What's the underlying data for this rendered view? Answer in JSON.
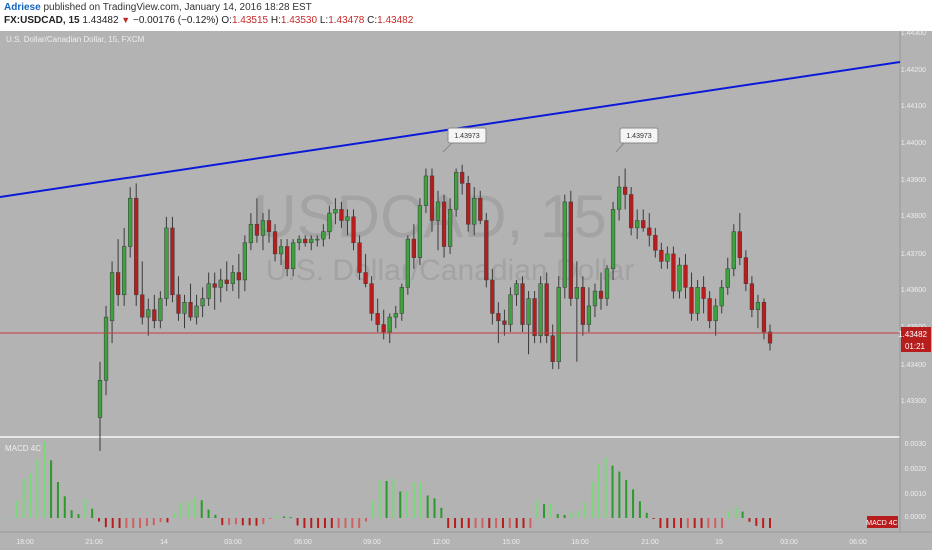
{
  "header": {
    "author": "Adriese",
    "published": "published on TradingView.com, January 14, 2016 18:28 EST",
    "symbol": "FX:USDCAD, 15",
    "last": "1.43482",
    "change_arrow": "▼",
    "change": "−0.00176 (−0.12%)",
    "ohlc": {
      "o_label": "O:",
      "o": "1.43515",
      "h_label": "H:",
      "h": "1.43530",
      "l_label": "L:",
      "l": "1.43478",
      "c_label": "C:",
      "c": "1.43482"
    }
  },
  "chart_info": "U.S. Dollar/Canadian Dollar, 15, FXCM",
  "watermark": {
    "main": "USDCAD, 15",
    "sub": "U.S. Dollar/Canadian Dollar"
  },
  "colors": {
    "bg": "#b3b3b3",
    "up": "#3fa13f",
    "down": "#b81d1d",
    "trendline": "#0a1ad8",
    "price_line": "#c43c3c",
    "macd_up": "#79d979",
    "macd_up_dark": "#2a9a2a",
    "macd_down": "#d06060",
    "macd_down_dark": "#b81d1d"
  },
  "price_axis": {
    "ticks": [
      "1.44300",
      "1.44200",
      "1.44100",
      "1.44000",
      "1.43900",
      "1.43800",
      "1.43700",
      "1.43600",
      "1.43500",
      "1.43400",
      "1.43300"
    ],
    "current": "1.43482",
    "countdown": "01:21"
  },
  "time_axis": [
    "18:00",
    "21:00",
    "14",
    "03:00",
    "06:00",
    "09:00",
    "12:00",
    "15:00",
    "18:00",
    "21:00",
    "15",
    "03:00",
    "06:00"
  ],
  "callouts": [
    "1.43973",
    "1.43973"
  ],
  "macd": {
    "label": "MACD 4C",
    "badge": "MACD 4C",
    "ticks": [
      "0.0030",
      "0.0020",
      "0.0010",
      "0.0000"
    ]
  },
  "chart_data": {
    "type": "candlestick",
    "title": "U.S. Dollar/Canadian Dollar, 15, FXCM",
    "ylim": [
      1.4325,
      1.4434
    ],
    "note_fields": [
      "o",
      "h",
      "l",
      "c"
    ],
    "candles": [
      {
        "o": 1.433,
        "h": 1.4345,
        "l": 1.4321,
        "c": 1.434
      },
      {
        "o": 1.434,
        "h": 1.436,
        "l": 1.4336,
        "c": 1.4357
      },
      {
        "o": 1.4356,
        "h": 1.4372,
        "l": 1.435,
        "c": 1.4369
      },
      {
        "o": 1.4369,
        "h": 1.4378,
        "l": 1.436,
        "c": 1.4363
      },
      {
        "o": 1.4363,
        "h": 1.4381,
        "l": 1.436,
        "c": 1.4376
      },
      {
        "o": 1.4376,
        "h": 1.4392,
        "l": 1.4373,
        "c": 1.4389
      },
      {
        "o": 1.4389,
        "h": 1.4393,
        "l": 1.436,
        "c": 1.4363
      },
      {
        "o": 1.4363,
        "h": 1.4372,
        "l": 1.4355,
        "c": 1.4357
      },
      {
        "o": 1.4357,
        "h": 1.4362,
        "l": 1.4352,
        "c": 1.4359
      },
      {
        "o": 1.4359,
        "h": 1.4363,
        "l": 1.4354,
        "c": 1.4356
      },
      {
        "o": 1.4356,
        "h": 1.4364,
        "l": 1.4354,
        "c": 1.4362
      },
      {
        "o": 1.4362,
        "h": 1.4384,
        "l": 1.436,
        "c": 1.4381
      },
      {
        "o": 1.4381,
        "h": 1.4384,
        "l": 1.4361,
        "c": 1.4363
      },
      {
        "o": 1.4363,
        "h": 1.4368,
        "l": 1.4356,
        "c": 1.4358
      },
      {
        "o": 1.4358,
        "h": 1.4363,
        "l": 1.4354,
        "c": 1.4361
      },
      {
        "o": 1.4361,
        "h": 1.4366,
        "l": 1.4356,
        "c": 1.4357
      },
      {
        "o": 1.4357,
        "h": 1.4363,
        "l": 1.4355,
        "c": 1.436
      },
      {
        "o": 1.436,
        "h": 1.4365,
        "l": 1.4357,
        "c": 1.4362
      },
      {
        "o": 1.4362,
        "h": 1.4369,
        "l": 1.436,
        "c": 1.4366
      },
      {
        "o": 1.4366,
        "h": 1.4369,
        "l": 1.4359,
        "c": 1.4365
      },
      {
        "o": 1.4365,
        "h": 1.437,
        "l": 1.4361,
        "c": 1.4367
      },
      {
        "o": 1.4367,
        "h": 1.4372,
        "l": 1.4364,
        "c": 1.4366
      },
      {
        "o": 1.4366,
        "h": 1.4371,
        "l": 1.4364,
        "c": 1.4369
      },
      {
        "o": 1.4369,
        "h": 1.4374,
        "l": 1.4362,
        "c": 1.4367
      },
      {
        "o": 1.4367,
        "h": 1.4379,
        "l": 1.4364,
        "c": 1.4377
      },
      {
        "o": 1.4377,
        "h": 1.4385,
        "l": 1.4375,
        "c": 1.4382
      },
      {
        "o": 1.4382,
        "h": 1.4389,
        "l": 1.4377,
        "c": 1.4379
      },
      {
        "o": 1.4379,
        "h": 1.4385,
        "l": 1.4375,
        "c": 1.4383
      },
      {
        "o": 1.4383,
        "h": 1.4386,
        "l": 1.4377,
        "c": 1.438
      },
      {
        "o": 1.438,
        "h": 1.4382,
        "l": 1.4372,
        "c": 1.4374
      },
      {
        "o": 1.4374,
        "h": 1.4378,
        "l": 1.4371,
        "c": 1.4376
      },
      {
        "o": 1.4376,
        "h": 1.4378,
        "l": 1.4368,
        "c": 1.437
      },
      {
        "o": 1.437,
        "h": 1.4378,
        "l": 1.4368,
        "c": 1.4377
      },
      {
        "o": 1.4377,
        "h": 1.4379,
        "l": 1.4375,
        "c": 1.4378
      },
      {
        "o": 1.4378,
        "h": 1.4379,
        "l": 1.4376,
        "c": 1.4377
      },
      {
        "o": 1.4377,
        "h": 1.4379,
        "l": 1.4375,
        "c": 1.4378
      },
      {
        "o": 1.4378,
        "h": 1.4379,
        "l": 1.4376,
        "c": 1.4378
      },
      {
        "o": 1.4378,
        "h": 1.4382,
        "l": 1.4376,
        "c": 1.438
      },
      {
        "o": 1.438,
        "h": 1.4387,
        "l": 1.4378,
        "c": 1.4385
      },
      {
        "o": 1.4385,
        "h": 1.4389,
        "l": 1.4382,
        "c": 1.4386
      },
      {
        "o": 1.4386,
        "h": 1.4388,
        "l": 1.4381,
        "c": 1.4383
      },
      {
        "o": 1.4383,
        "h": 1.4386,
        "l": 1.4379,
        "c": 1.4384
      },
      {
        "o": 1.4384,
        "h": 1.4386,
        "l": 1.4375,
        "c": 1.4377
      },
      {
        "o": 1.4377,
        "h": 1.4379,
        "l": 1.4367,
        "c": 1.4369
      },
      {
        "o": 1.4369,
        "h": 1.4374,
        "l": 1.4365,
        "c": 1.4366
      },
      {
        "o": 1.4366,
        "h": 1.4368,
        "l": 1.4356,
        "c": 1.4358
      },
      {
        "o": 1.4358,
        "h": 1.4362,
        "l": 1.4353,
        "c": 1.4355
      },
      {
        "o": 1.4355,
        "h": 1.4359,
        "l": 1.4351,
        "c": 1.4353
      },
      {
        "o": 1.4353,
        "h": 1.4358,
        "l": 1.435,
        "c": 1.4357
      },
      {
        "o": 1.4357,
        "h": 1.436,
        "l": 1.4354,
        "c": 1.4358
      },
      {
        "o": 1.4358,
        "h": 1.4366,
        "l": 1.4356,
        "c": 1.4365
      },
      {
        "o": 1.4365,
        "h": 1.4379,
        "l": 1.4363,
        "c": 1.4378
      },
      {
        "o": 1.4378,
        "h": 1.4382,
        "l": 1.437,
        "c": 1.4373
      },
      {
        "o": 1.4373,
        "h": 1.4389,
        "l": 1.4371,
        "c": 1.4387
      },
      {
        "o": 1.4387,
        "h": 1.4397,
        "l": 1.4385,
        "c": 1.4395
      },
      {
        "o": 1.4395,
        "h": 1.4397,
        "l": 1.438,
        "c": 1.4383
      },
      {
        "o": 1.4383,
        "h": 1.4391,
        "l": 1.4375,
        "c": 1.4388
      },
      {
        "o": 1.4388,
        "h": 1.439,
        "l": 1.4373,
        "c": 1.4376
      },
      {
        "o": 1.4376,
        "h": 1.4389,
        "l": 1.4374,
        "c": 1.4386
      },
      {
        "o": 1.4386,
        "h": 1.4397,
        "l": 1.4384,
        "c": 1.4396
      },
      {
        "o": 1.4396,
        "h": 1.4398,
        "l": 1.439,
        "c": 1.4393
      },
      {
        "o": 1.4393,
        "h": 1.4395,
        "l": 1.438,
        "c": 1.4382
      },
      {
        "o": 1.4382,
        "h": 1.4392,
        "l": 1.4379,
        "c": 1.4389
      },
      {
        "o": 1.4389,
        "h": 1.4391,
        "l": 1.4382,
        "c": 1.4383
      },
      {
        "o": 1.4383,
        "h": 1.4385,
        "l": 1.4365,
        "c": 1.4367
      },
      {
        "o": 1.4367,
        "h": 1.437,
        "l": 1.4355,
        "c": 1.4358
      },
      {
        "o": 1.4358,
        "h": 1.4361,
        "l": 1.435,
        "c": 1.4356
      },
      {
        "o": 1.4356,
        "h": 1.4359,
        "l": 1.4352,
        "c": 1.4355
      },
      {
        "o": 1.4355,
        "h": 1.4365,
        "l": 1.4353,
        "c": 1.4363
      },
      {
        "o": 1.4363,
        "h": 1.4367,
        "l": 1.436,
        "c": 1.4366
      },
      {
        "o": 1.4366,
        "h": 1.4368,
        "l": 1.4353,
        "c": 1.4355
      },
      {
        "o": 1.4355,
        "h": 1.4364,
        "l": 1.4347,
        "c": 1.4362
      },
      {
        "o": 1.4362,
        "h": 1.4364,
        "l": 1.435,
        "c": 1.4352
      },
      {
        "o": 1.4352,
        "h": 1.4368,
        "l": 1.435,
        "c": 1.4366
      },
      {
        "o": 1.4366,
        "h": 1.4369,
        "l": 1.435,
        "c": 1.4352
      },
      {
        "o": 1.4352,
        "h": 1.4355,
        "l": 1.4343,
        "c": 1.4345
      },
      {
        "o": 1.4345,
        "h": 1.4368,
        "l": 1.4343,
        "c": 1.4365
      },
      {
        "o": 1.4365,
        "h": 1.439,
        "l": 1.4362,
        "c": 1.4388
      },
      {
        "o": 1.4388,
        "h": 1.4391,
        "l": 1.436,
        "c": 1.4362
      },
      {
        "o": 1.4362,
        "h": 1.4372,
        "l": 1.4345,
        "c": 1.4365
      },
      {
        "o": 1.4365,
        "h": 1.4368,
        "l": 1.4352,
        "c": 1.4355
      },
      {
        "o": 1.4355,
        "h": 1.4365,
        "l": 1.4353,
        "c": 1.436
      },
      {
        "o": 1.436,
        "h": 1.4366,
        "l": 1.4357,
        "c": 1.4364
      },
      {
        "o": 1.4364,
        "h": 1.4369,
        "l": 1.4359,
        "c": 1.4362
      },
      {
        "o": 1.4362,
        "h": 1.4371,
        "l": 1.436,
        "c": 1.437
      },
      {
        "o": 1.437,
        "h": 1.4388,
        "l": 1.4367,
        "c": 1.4386
      },
      {
        "o": 1.4386,
        "h": 1.4395,
        "l": 1.4383,
        "c": 1.4392
      },
      {
        "o": 1.4392,
        "h": 1.4397,
        "l": 1.4386,
        "c": 1.439
      },
      {
        "o": 1.439,
        "h": 1.4392,
        "l": 1.4379,
        "c": 1.4381
      },
      {
        "o": 1.4381,
        "h": 1.4386,
        "l": 1.4378,
        "c": 1.4383
      },
      {
        "o": 1.4383,
        "h": 1.4386,
        "l": 1.438,
        "c": 1.4381
      },
      {
        "o": 1.4381,
        "h": 1.4385,
        "l": 1.4376,
        "c": 1.4379
      },
      {
        "o": 1.4379,
        "h": 1.4381,
        "l": 1.4373,
        "c": 1.4375
      },
      {
        "o": 1.4375,
        "h": 1.4377,
        "l": 1.437,
        "c": 1.4372
      },
      {
        "o": 1.4372,
        "h": 1.4376,
        "l": 1.437,
        "c": 1.4374
      },
      {
        "o": 1.4374,
        "h": 1.4376,
        "l": 1.4362,
        "c": 1.4364
      },
      {
        "o": 1.4364,
        "h": 1.4373,
        "l": 1.4362,
        "c": 1.4371
      },
      {
        "o": 1.4371,
        "h": 1.4374,
        "l": 1.4362,
        "c": 1.4365
      },
      {
        "o": 1.4365,
        "h": 1.4369,
        "l": 1.4356,
        "c": 1.4358
      },
      {
        "o": 1.4358,
        "h": 1.4367,
        "l": 1.4356,
        "c": 1.4365
      },
      {
        "o": 1.4365,
        "h": 1.4368,
        "l": 1.4358,
        "c": 1.4362
      },
      {
        "o": 1.4362,
        "h": 1.4364,
        "l": 1.4354,
        "c": 1.4356
      },
      {
        "o": 1.4356,
        "h": 1.4362,
        "l": 1.4352,
        "c": 1.436
      },
      {
        "o": 1.436,
        "h": 1.4367,
        "l": 1.4358,
        "c": 1.4365
      },
      {
        "o": 1.4365,
        "h": 1.4373,
        "l": 1.4363,
        "c": 1.437
      },
      {
        "o": 1.437,
        "h": 1.4382,
        "l": 1.4368,
        "c": 1.438
      },
      {
        "o": 1.438,
        "h": 1.4385,
        "l": 1.4371,
        "c": 1.4373
      },
      {
        "o": 1.4373,
        "h": 1.4375,
        "l": 1.4364,
        "c": 1.4366
      },
      {
        "o": 1.4366,
        "h": 1.4368,
        "l": 1.4357,
        "c": 1.4359
      },
      {
        "o": 1.4359,
        "h": 1.4363,
        "l": 1.4354,
        "c": 1.4361
      },
      {
        "o": 1.4361,
        "h": 1.4362,
        "l": 1.4351,
        "c": 1.4353
      },
      {
        "o": 1.4353,
        "h": 1.4355,
        "l": 1.4348,
        "c": 1.435
      }
    ]
  }
}
